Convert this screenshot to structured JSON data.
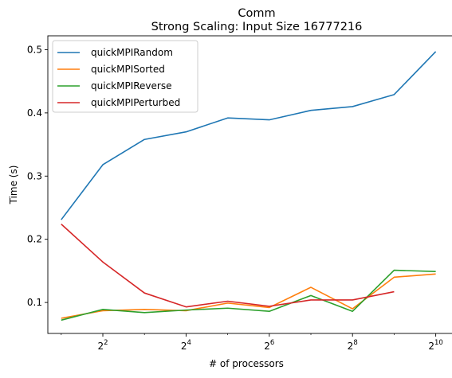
{
  "chart_data": {
    "type": "line",
    "title": "Comm",
    "subtitle": "Strong Scaling: Input Size 16777216",
    "xlabel": "# of processors",
    "ylabel": "Time (s)",
    "x_scale": "log2",
    "x": [
      2,
      4,
      8,
      16,
      32,
      64,
      128,
      256,
      512,
      1024
    ],
    "xlim": [
      1.6,
      1290
    ],
    "ylim": [
      0.051,
      0.522
    ],
    "x_ticks": [
      {
        "value": 4,
        "base": "2",
        "exp": "2"
      },
      {
        "value": 16,
        "base": "2",
        "exp": "4"
      },
      {
        "value": 64,
        "base": "2",
        "exp": "6"
      },
      {
        "value": 256,
        "base": "2",
        "exp": "8"
      },
      {
        "value": 1024,
        "base": "2",
        "exp": "10"
      }
    ],
    "y_ticks": [
      {
        "value": 0.1,
        "label": "0.1"
      },
      {
        "value": 0.2,
        "label": "0.2"
      },
      {
        "value": 0.3,
        "label": "0.3"
      },
      {
        "value": 0.4,
        "label": "0.4"
      },
      {
        "value": 0.5,
        "label": "0.5"
      }
    ],
    "grid": false,
    "legend_position": "top-left",
    "series": [
      {
        "name": "quickMPIRandom",
        "color": "#1f77b4",
        "values": [
          0.231,
          0.318,
          0.358,
          0.37,
          0.392,
          0.389,
          0.404,
          0.41,
          0.429,
          0.497
        ]
      },
      {
        "name": "quickMPISorted",
        "color": "#ff7f0e",
        "values": [
          0.075,
          0.087,
          0.089,
          0.087,
          0.099,
          0.092,
          0.124,
          0.09,
          0.14,
          0.145
        ]
      },
      {
        "name": "quickMPIReverse",
        "color": "#2ca02c",
        "values": [
          0.072,
          0.089,
          0.084,
          0.088,
          0.091,
          0.086,
          0.111,
          0.086,
          0.151,
          0.149
        ]
      },
      {
        "name": "quickMPIPerturbed",
        "color": "#d62728",
        "values": [
          0.224,
          0.164,
          0.115,
          0.093,
          0.102,
          0.094,
          0.104,
          0.104,
          0.117,
          null
        ]
      }
    ]
  }
}
